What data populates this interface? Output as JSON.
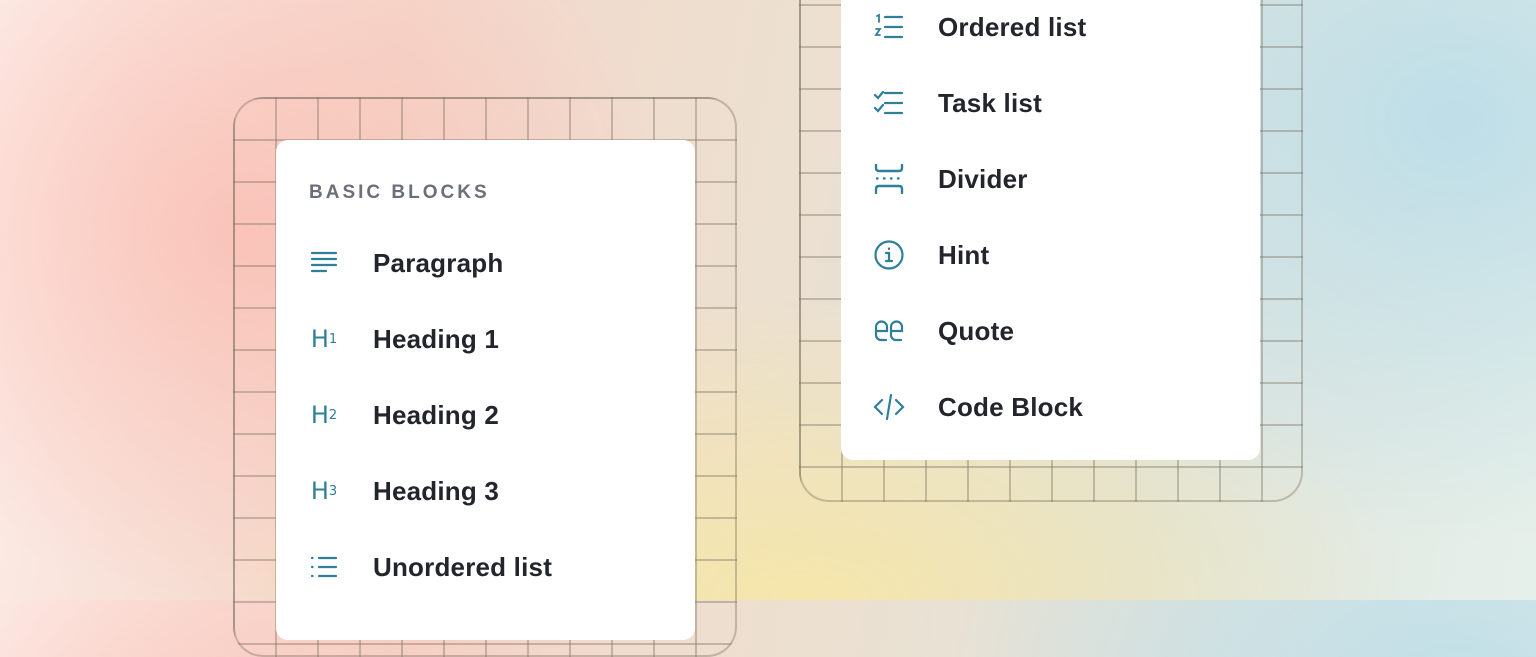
{
  "left_menu": {
    "section_title": "BASIC BLOCKS",
    "items": [
      {
        "label": "Paragraph",
        "icon": "paragraph-icon"
      },
      {
        "label": "Heading 1",
        "icon": "heading-1-icon"
      },
      {
        "label": "Heading 2",
        "icon": "heading-2-icon"
      },
      {
        "label": "Heading 3",
        "icon": "heading-3-icon"
      },
      {
        "label": "Unordered list",
        "icon": "unordered-list-icon"
      }
    ]
  },
  "right_menu": {
    "items": [
      {
        "label": "Ordered list",
        "icon": "ordered-list-icon"
      },
      {
        "label": "Task list",
        "icon": "task-list-icon"
      },
      {
        "label": "Divider",
        "icon": "divider-icon"
      },
      {
        "label": "Hint",
        "icon": "info-icon"
      },
      {
        "label": "Quote",
        "icon": "quote-icon"
      },
      {
        "label": "Code Block",
        "icon": "code-icon"
      }
    ]
  },
  "colors": {
    "icon": "#2f7f99",
    "text": "#22262c",
    "section_title": "#6b6f77"
  }
}
